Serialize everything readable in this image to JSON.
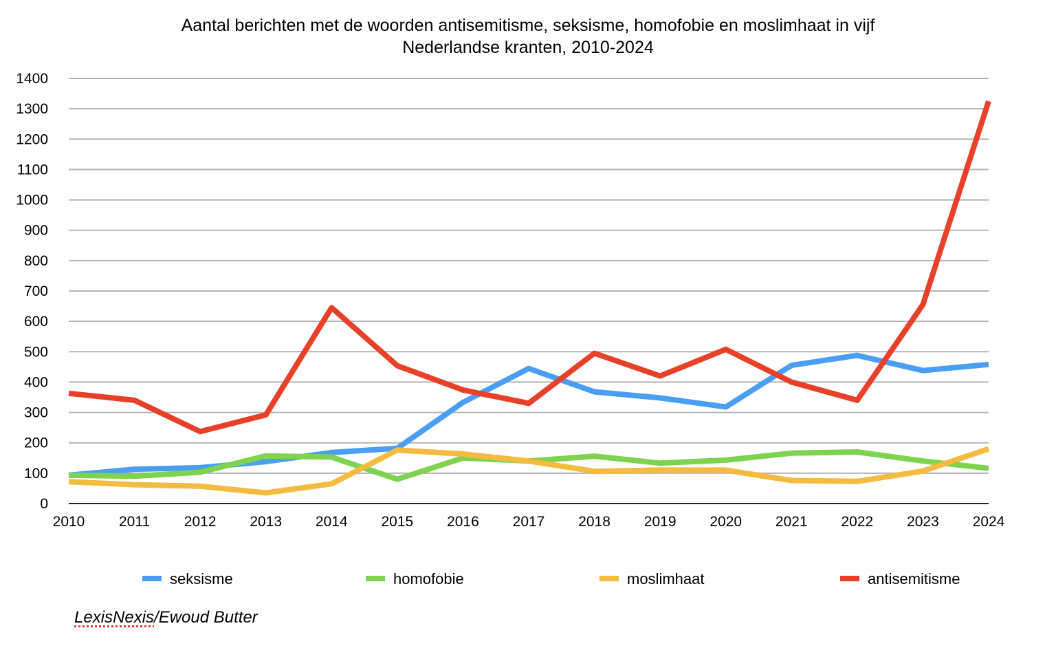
{
  "chart_data": {
    "type": "line",
    "title": [
      "Aantal berichten met de woorden antisemitisme, seksisme, homofobie en moslimhaat in vijf",
      "Nederlandse kranten, 2010-2024"
    ],
    "xlabel": "",
    "ylabel": "",
    "ylim": [
      0,
      1400
    ],
    "yticks": [
      "0",
      "100",
      "200",
      "300",
      "400",
      "500",
      "600",
      "700",
      "800",
      "900",
      "1000",
      "1100",
      "1200",
      "1300",
      "1400"
    ],
    "categories": [
      "2010",
      "2011",
      "2012",
      "2013",
      "2014",
      "2015",
      "2016",
      "2017",
      "2018",
      "2019",
      "2020",
      "2021",
      "2022",
      "2023",
      "2024"
    ],
    "grid": true,
    "legend_position": "bottom",
    "series": [
      {
        "name": "seksisme",
        "color": "#4a9ff5",
        "values": [
          93,
          113,
          118,
          138,
          168,
          182,
          333,
          445,
          368,
          348,
          318,
          455,
          488,
          438,
          458
        ]
      },
      {
        "name": "homofobie",
        "color": "#7ed34f",
        "values": [
          93,
          90,
          103,
          157,
          153,
          80,
          150,
          140,
          156,
          133,
          143,
          166,
          170,
          140,
          116
        ]
      },
      {
        "name": "moslimhaat",
        "color": "#f3bb40",
        "values": [
          72,
          62,
          57,
          35,
          65,
          176,
          163,
          140,
          106,
          110,
          110,
          76,
          73,
          107,
          180
        ]
      },
      {
        "name": "antisemitisme",
        "color": "#e8412a",
        "values": [
          363,
          340,
          237,
          292,
          645,
          454,
          374,
          330,
          495,
          420,
          508,
          400,
          340,
          655,
          1325
        ]
      }
    ]
  },
  "source": {
    "part1": "LexisNexis",
    "part2": "/Ewoud Butter"
  }
}
